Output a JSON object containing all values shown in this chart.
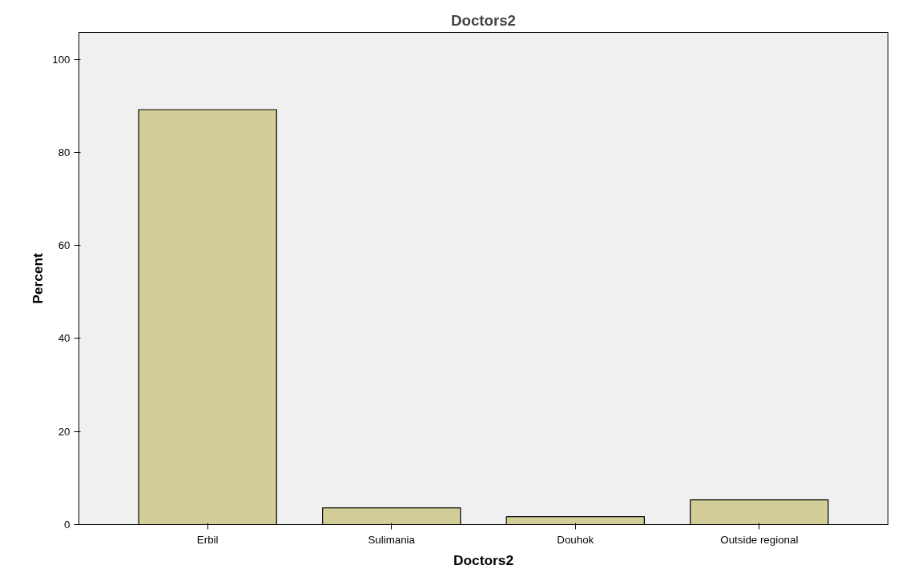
{
  "chart_data": {
    "type": "bar",
    "title": "Doctors2",
    "xlabel": "Doctors2",
    "ylabel": "Percent",
    "categories": [
      "Erbil",
      "Sulimania",
      "Douhok",
      "Outside regional"
    ],
    "values": [
      89.2,
      3.6,
      1.7,
      5.3
    ],
    "color": "#d3ce98",
    "ylim": [
      0,
      105.8
    ],
    "yticks": [
      0,
      20,
      40,
      60,
      80,
      100
    ],
    "grid": false
  }
}
